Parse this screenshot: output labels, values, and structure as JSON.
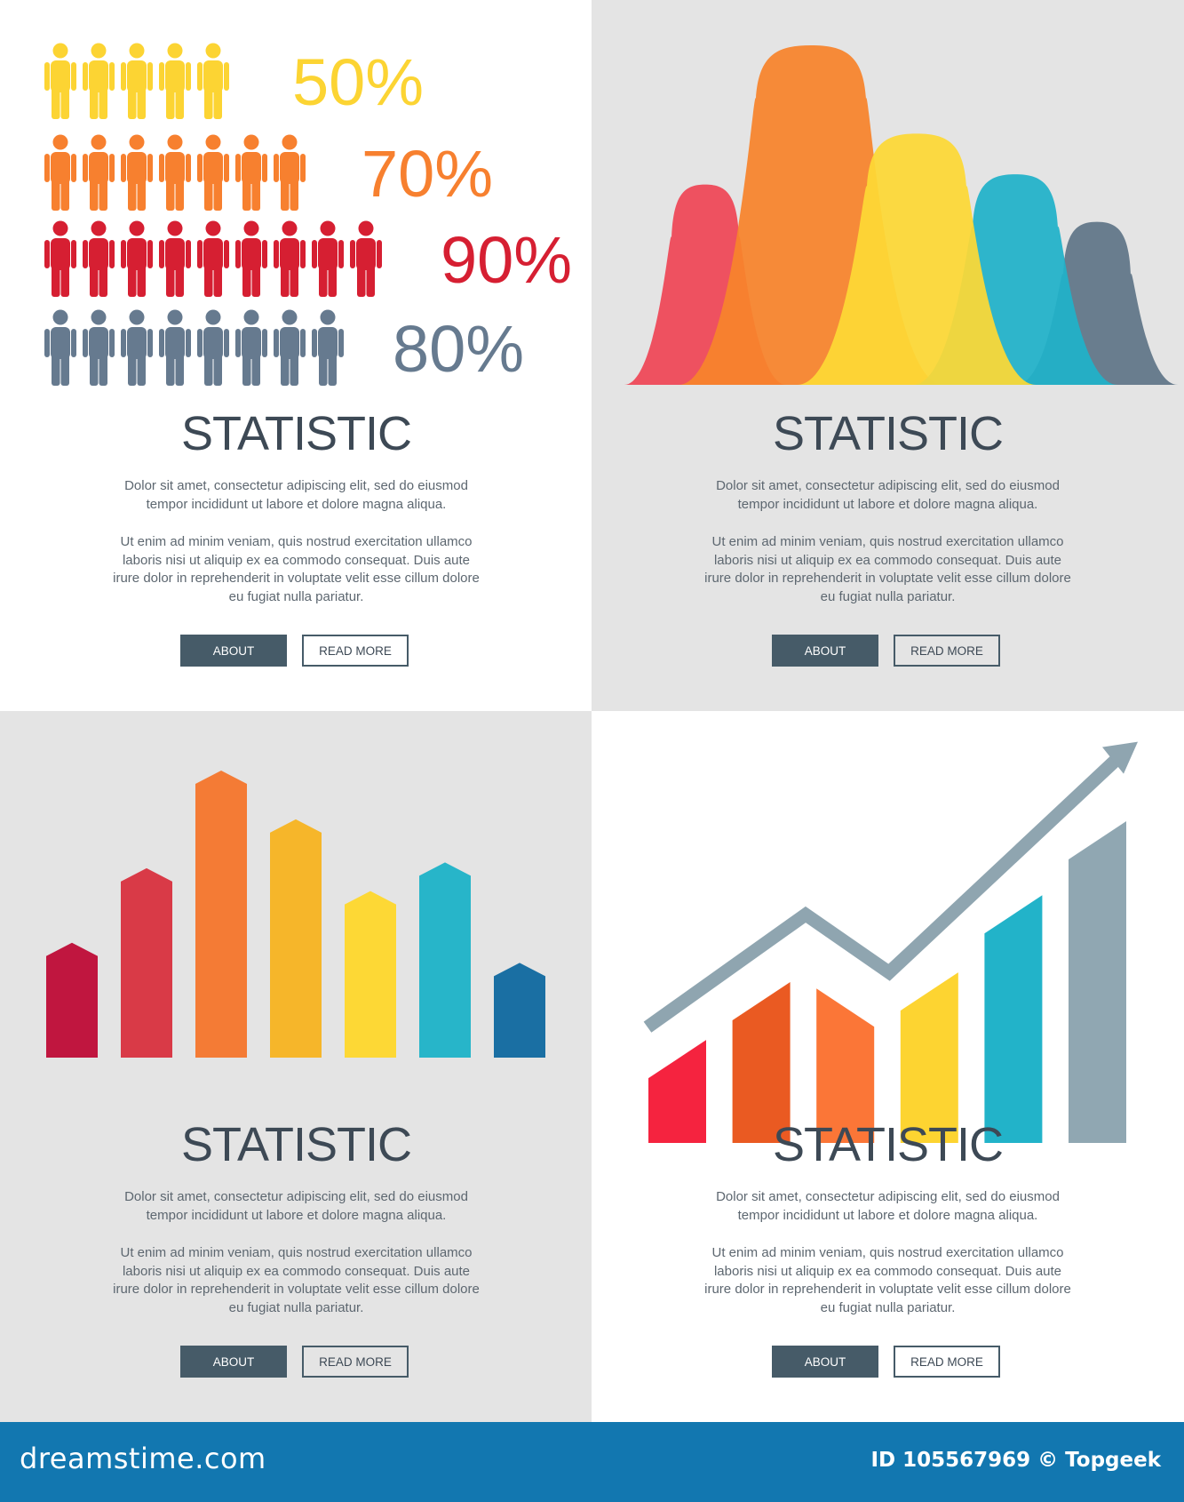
{
  "panels": [
    {
      "title": "STATISTIC",
      "paragraph1": [
        "Dolor sit amet, consectetur adipiscing elit, sed do eiusmod",
        "tempor incididunt ut labore et dolore magna aliqua."
      ],
      "paragraph2": [
        "Ut enim ad minim veniam, quis nostrud exercitation ullamco",
        "laboris nisi ut aliquip ex ea commodo consequat. Duis aute",
        "irure dolor in reprehenderit in voluptate velit esse cillum dolore",
        "eu fugiat nulla pariatur."
      ],
      "about_label": "ABOUT",
      "read_more_label": "READ MORE"
    },
    {
      "title": "STATISTIC",
      "paragraph1": [
        "Dolor sit amet, consectetur adipiscing elit, sed do eiusmod",
        "tempor incididunt ut labore et dolore magna aliqua."
      ],
      "paragraph2": [
        "Ut enim ad minim veniam, quis nostrud exercitation ullamco",
        "laboris nisi ut aliquip ex ea commodo consequat. Duis aute",
        "irure dolor in reprehenderit in voluptate velit esse cillum dolore",
        "eu fugiat nulla pariatur."
      ],
      "about_label": "ABOUT",
      "read_more_label": "READ MORE"
    },
    {
      "title": "STATISTIC",
      "paragraph1": [
        "Dolor sit amet, consectetur adipiscing elit, sed do eiusmod",
        "tempor incididunt ut labore et dolore magna aliqua."
      ],
      "paragraph2": [
        "Ut enim ad minim veniam, quis nostrud exercitation ullamco",
        "laboris nisi ut aliquip ex ea commodo consequat. Duis aute",
        "irure dolor in reprehenderit in voluptate velit esse cillum dolore",
        "eu fugiat nulla pariatur."
      ],
      "about_label": "ABOUT",
      "read_more_label": "READ MORE"
    },
    {
      "title": "STATISTIC",
      "paragraph1": [
        "Dolor sit amet, consectetur adipiscing elit, sed do eiusmod",
        "tempor incididunt ut labore et dolore magna aliqua."
      ],
      "paragraph2": [
        "Ut enim ad minim veniam, quis nostrud exercitation ullamco",
        "laboris nisi ut aliquip ex ea commodo consequat. Duis aute",
        "irure dolor in reprehenderit in voluptate velit esse cillum dolore",
        "eu fugiat nulla pariatur."
      ],
      "about_label": "ABOUT",
      "read_more_label": "READ MORE"
    }
  ],
  "banner": {
    "logo": "dreamstime.com",
    "credit": "ID 105567969 © Topgeek",
    "color": "#1277b0"
  },
  "chart_data": [
    {
      "type": "pictogram",
      "icon": "person-icon",
      "rows": [
        {
          "label": "50%",
          "value": 50,
          "icons": 5,
          "color": "#fcd433"
        },
        {
          "label": "70%",
          "value": 70,
          "icons": 7,
          "color": "#f7802f"
        },
        {
          "label": "90%",
          "value": 90,
          "icons": 9,
          "color": "#d61f32"
        },
        {
          "label": "80%",
          "value": 80,
          "icons": 8,
          "color": "#667a8f"
        }
      ]
    },
    {
      "type": "area",
      "shape": "bell-curves",
      "values": [
        59,
        100,
        74,
        62,
        48
      ],
      "colors": [
        "#ef4656",
        "#f8832b",
        "#fdd835",
        "#20b1c9",
        "#607588"
      ]
    },
    {
      "type": "bar",
      "shape": "arrow-top-bars",
      "values": [
        40,
        66,
        100,
        83,
        58,
        68,
        33
      ],
      "colors": [
        "#c0163f",
        "#d93a47",
        "#f47b35",
        "#f6b62a",
        "#fdd835",
        "#27b5c9",
        "#1a6fa3"
      ]
    },
    {
      "type": "bar",
      "shape": "sloped-bars-with-trend-arrow",
      "values": [
        32,
        50,
        48,
        53,
        77,
        100
      ],
      "peak_side": [
        "right",
        "right",
        "left",
        "right",
        "right",
        "right"
      ],
      "colors": [
        "#f5233f",
        "#ea5a22",
        "#fb7637",
        "#fdd431",
        "#22b3c9",
        "#90a7b2"
      ],
      "trend_line": [
        36,
        71,
        53,
        120
      ],
      "trend_color": "#8fa5b0"
    }
  ]
}
